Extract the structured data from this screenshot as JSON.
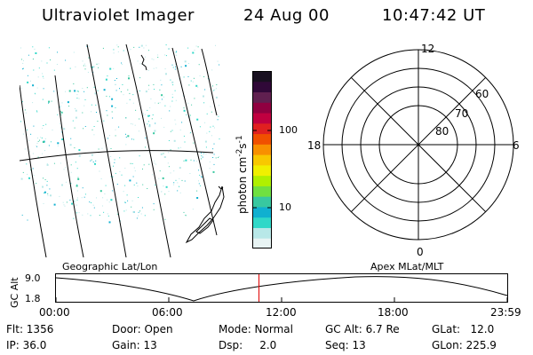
{
  "header": {
    "instrument": "Ultraviolet Imager",
    "date": "24 Aug 00",
    "time": "10:47:42 UT"
  },
  "colorbar": {
    "unit_label": "photon cm",
    "unit_exp1": "-2",
    "unit_mid": "s",
    "unit_exp2": "-1",
    "ticks": [
      {
        "label": "100",
        "value": 100
      },
      {
        "label": "10",
        "value": 10
      }
    ],
    "colors": [
      "#e8f4f4",
      "#b8e8e8",
      "#30d8c8",
      "#10b0d0",
      "#38c8a0",
      "#70e040",
      "#b0f000",
      "#f0f000",
      "#f8c800",
      "#f89000",
      "#f05000",
      "#e02020",
      "#c00040",
      "#900040",
      "#602050",
      "#300838",
      "#181020"
    ]
  },
  "polar_plot": {
    "mlt_labels": {
      "top": "12",
      "left": "18",
      "right": "6",
      "bottom": "0"
    },
    "lat_labels": [
      "60",
      "70",
      "80"
    ]
  },
  "timeline": {
    "y_axis_label": "GC Alt",
    "y_ticks": [
      "9.0",
      "1.8"
    ],
    "left_title": "Geographic Lat/Lon",
    "right_title": "Apex MLat/MLT",
    "x_ticks": [
      "00:00",
      "06:00",
      "12:00",
      "18:00",
      "23:59"
    ],
    "current_time": "10:47:42",
    "marker_color": "#e00000"
  },
  "info": {
    "flt": "Flt: 1356",
    "ip": "IP: 36.0",
    "door": "Door: Open",
    "gain": "Gain: 13",
    "mode": "Mode: Normal",
    "dsp": "Dsp:     2.0",
    "gc_alt": "GC Alt: 6.7 Re",
    "seq": "Seq: 13",
    "glat": "GLat:   12.0",
    "glon": "GLon: 225.9"
  }
}
